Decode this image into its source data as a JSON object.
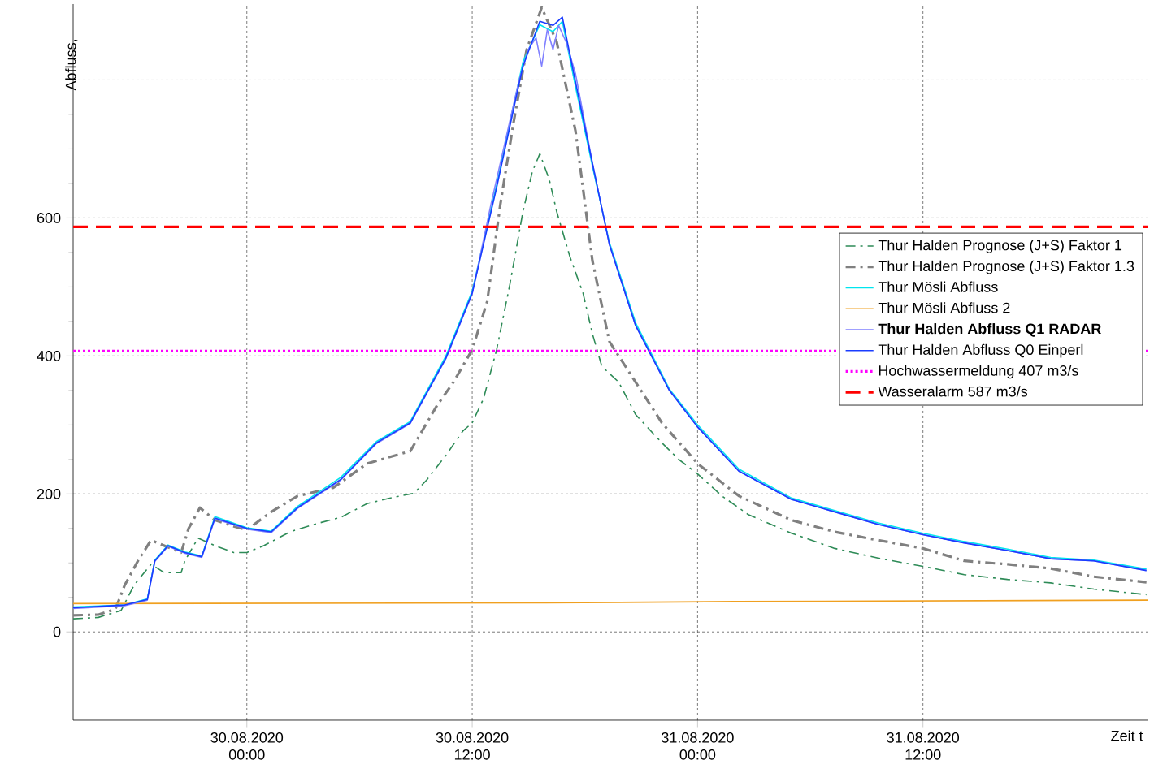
{
  "chart_data": {
    "type": "line",
    "xlabel": "Zeit t",
    "ylabel": "Abfluss,",
    "xlim": [
      "2020-08-29T14:45",
      "2020-09-01T00:00"
    ],
    "ylim": [
      -128,
      910
    ],
    "xticks": [
      {
        "value": "2020-08-30T00:00",
        "label": "30.08.2020 00:00"
      },
      {
        "value": "2020-08-30T12:00",
        "label": "30.08.2020 12:00"
      },
      {
        "value": "2020-08-31T00:00",
        "label": "31.08.2020 00:00"
      },
      {
        "value": "2020-08-31T12:00",
        "label": "31.08.2020 12:00"
      }
    ],
    "yticks": [
      0,
      200,
      400,
      600,
      {
        "value": 800,
        "label": null
      }
    ],
    "grid": true,
    "legend": "right",
    "series": [
      {
        "name": "Thur Halden Prognose  (J+S) Faktor 1",
        "color": "#2e8b57",
        "line_style": "dashed",
        "x": [
          "2020-08-29T14:45",
          "2020-08-29T16:06",
          "2020-08-29T17:18",
          "2020-08-29T18:00",
          "2020-08-29T18:54",
          "2020-08-29T19:36",
          "2020-08-29T20:30",
          "2020-08-29T20:42",
          "2020-08-29T21:24",
          "2020-08-29T22:18",
          "2020-08-29T23:18",
          "2020-08-30T00:00",
          "2020-08-30T00:54",
          "2020-08-30T02:18",
          "2020-08-30T03:36",
          "2020-08-30T05:00",
          "2020-08-30T06:24",
          "2020-08-30T07:48",
          "2020-08-30T08:54",
          "2020-08-30T09:36",
          "2020-08-30T10:36",
          "2020-08-30T11:30",
          "2020-08-30T12:00",
          "2020-08-30T12:36",
          "2020-08-30T13:18",
          "2020-08-30T14:00",
          "2020-08-30T14:42",
          "2020-08-30T15:12",
          "2020-08-30T15:36",
          "2020-08-30T16:06",
          "2020-08-30T16:30",
          "2020-08-30T17:12",
          "2020-08-30T17:54",
          "2020-08-30T18:24",
          "2020-08-30T18:54",
          "2020-08-30T19:48",
          "2020-08-30T20:42",
          "2020-08-30T22:06",
          "2020-08-30T23:00",
          "2020-08-31T00:00",
          "2020-08-31T01:18",
          "2020-08-31T02:42",
          "2020-08-31T05:00",
          "2020-08-31T07:18",
          "2020-08-31T09:36",
          "2020-08-31T12:00",
          "2020-08-31T14:12",
          "2020-08-31T16:30",
          "2020-08-31T18:48",
          "2020-08-31T21:06",
          "2020-08-31T23:54"
        ],
        "values": [
          19,
          21,
          31,
          68,
          98,
          86,
          86,
          103,
          136,
          125,
          115,
          115,
          125,
          145,
          156,
          166,
          186,
          195,
          201,
          221,
          256,
          291,
          303,
          338,
          409,
          503,
          609,
          667,
          693,
          656,
          609,
          544,
          491,
          432,
          385,
          362,
          315,
          274,
          250,
          229,
          197,
          170,
          143,
          121,
          107,
          95,
          83,
          76,
          71,
          62,
          54
        ]
      },
      {
        "name": "Thur Halden Prognose  (J+S) Faktor 1.3",
        "color": "#808080",
        "line_style": "dashed",
        "x": [
          "2020-08-29T14:45",
          "2020-08-29T16:06",
          "2020-08-29T17:00",
          "2020-08-29T17:30",
          "2020-08-29T18:12",
          "2020-08-29T18:54",
          "2020-08-29T19:36",
          "2020-08-29T20:30",
          "2020-08-29T20:54",
          "2020-08-29T21:30",
          "2020-08-29T22:18",
          "2020-08-29T23:18",
          "2020-08-30T00:00",
          "2020-08-30T01:18",
          "2020-08-30T02:42",
          "2020-08-30T04:36",
          "2020-08-30T06:24",
          "2020-08-30T08:42",
          "2020-08-30T10:06",
          "2020-08-30T11:00",
          "2020-08-30T12:00",
          "2020-08-30T12:48",
          "2020-08-30T13:30",
          "2020-08-30T14:12",
          "2020-08-30T14:54",
          "2020-08-30T15:42",
          "2020-08-30T16:30",
          "2020-08-30T17:30",
          "2020-08-30T18:24",
          "2020-08-30T19:18",
          "2020-08-30T20:42",
          "2020-08-30T22:06",
          "2020-08-31T00:00",
          "2020-08-31T02:12",
          "2020-08-31T05:00",
          "2020-08-31T07:18",
          "2020-08-31T09:36",
          "2020-08-31T12:00",
          "2020-08-31T14:12",
          "2020-08-31T16:30",
          "2020-08-31T18:48",
          "2020-08-31T21:06",
          "2020-08-31T23:54"
        ],
        "values": [
          24,
          25,
          33,
          68,
          103,
          133,
          125,
          115,
          150,
          180,
          162,
          153,
          148,
          174,
          197,
          209,
          244,
          262,
          327,
          362,
          409,
          479,
          620,
          738,
          844,
          905,
          855,
          726,
          538,
          421,
          362,
          303,
          244,
          197,
          162,
          145,
          133,
          121,
          103,
          98,
          92,
          80,
          72
        ]
      },
      {
        "name": "Thur Mösli  Abfluss",
        "color": "#00e5ee",
        "line_style": "solid",
        "x": [
          "2020-08-29T14:45",
          "2020-08-29T17:30",
          "2020-08-29T18:42",
          "2020-08-29T19:06",
          "2020-08-29T19:48",
          "2020-08-29T20:42",
          "2020-08-29T21:36",
          "2020-08-29T22:18",
          "2020-08-30T00:00",
          "2020-08-30T01:18",
          "2020-08-30T02:42",
          "2020-08-30T05:00",
          "2020-08-30T06:54",
          "2020-08-30T08:42",
          "2020-08-30T10:36",
          "2020-08-30T12:00",
          "2020-08-30T13:18",
          "2020-08-30T14:42",
          "2020-08-30T15:36",
          "2020-08-30T16:18",
          "2020-08-30T16:48",
          "2020-08-30T17:30",
          "2020-08-30T18:24",
          "2020-08-30T19:18",
          "2020-08-30T20:42",
          "2020-08-30T22:30",
          "2020-08-31T00:00",
          "2020-08-31T02:12",
          "2020-08-31T05:00",
          "2020-08-31T07:18",
          "2020-08-31T09:36",
          "2020-08-31T12:00",
          "2020-08-31T14:12",
          "2020-08-31T16:30",
          "2020-08-31T18:48",
          "2020-08-31T21:06",
          "2020-08-31T23:54"
        ],
        "values": [
          36,
          39,
          48,
          104,
          126,
          116,
          110,
          167,
          151,
          146,
          182,
          224,
          276,
          305,
          400,
          494,
          648,
          826,
          880,
          870,
          885,
          790,
          675,
          565,
          448,
          352,
          300,
          236,
          194,
          176,
          158,
          143,
          131,
          120,
          108,
          104,
          91
        ]
      },
      {
        "name": "Thur Mösli  Abfluss 2",
        "color": "#f0a020",
        "line_style": "solid",
        "x": [
          "2020-08-29T14:45",
          "2020-08-30T16:00",
          "2020-08-31T02:00",
          "2020-09-01T00:00"
        ],
        "values": [
          41,
          42,
          44,
          46
        ]
      },
      {
        "name": "**Thur Halden Abfluss Q1 RADAR**",
        "color": "#8080ff",
        "line_style": "solid",
        "x": [
          "2020-08-29T14:45",
          "2020-08-29T17:30",
          "2020-08-29T18:42",
          "2020-08-29T19:06",
          "2020-08-29T19:48",
          "2020-08-29T20:42",
          "2020-08-29T21:36",
          "2020-08-29T22:18",
          "2020-08-30T00:00",
          "2020-08-30T01:18",
          "2020-08-30T02:42",
          "2020-08-30T05:00",
          "2020-08-30T06:54",
          "2020-08-30T08:42",
          "2020-08-30T10:36",
          "2020-08-30T12:00",
          "2020-08-30T13:00",
          "2020-08-30T13:30",
          "2020-08-30T14:00",
          "2020-08-30T14:30",
          "2020-08-30T15:00",
          "2020-08-30T15:24",
          "2020-08-30T15:42",
          "2020-08-30T16:00",
          "2020-08-30T16:18",
          "2020-08-30T16:36",
          "2020-08-30T17:00",
          "2020-08-30T17:30",
          "2020-08-30T18:24",
          "2020-08-30T19:18",
          "2020-08-30T20:42",
          "2020-08-30T22:30",
          "2020-08-31T00:00",
          "2020-08-31T02:12",
          "2020-08-31T05:00",
          "2020-08-31T07:18",
          "2020-08-31T09:36",
          "2020-08-31T12:00",
          "2020-08-31T14:12",
          "2020-08-31T16:30",
          "2020-08-31T18:48",
          "2020-08-31T21:06",
          "2020-08-31T23:54"
        ],
        "values": [
          34,
          38,
          46,
          102,
          124,
          114,
          108,
          164,
          149,
          144,
          179,
          220,
          273,
          302,
          396,
          490,
          620,
          680,
          740,
          800,
          845,
          861,
          820,
          873,
          844,
          879,
          855,
          809,
          680,
          562,
          444,
          350,
          297,
          233,
          192,
          174,
          156,
          141,
          129,
          118,
          106,
          103,
          89
        ]
      },
      {
        "name": "Thur Halden Abfluss Q0 Einperl",
        "color": "#1a3cff",
        "line_style": "solid",
        "x": [
          "2020-08-29T14:45",
          "2020-08-29T17:30",
          "2020-08-29T18:42",
          "2020-08-29T19:06",
          "2020-08-29T19:48",
          "2020-08-29T20:42",
          "2020-08-29T21:36",
          "2020-08-29T22:18",
          "2020-08-30T00:00",
          "2020-08-30T01:18",
          "2020-08-30T02:42",
          "2020-08-30T05:00",
          "2020-08-30T06:54",
          "2020-08-30T08:42",
          "2020-08-30T10:36",
          "2020-08-30T12:00",
          "2020-08-30T13:18",
          "2020-08-30T14:42",
          "2020-08-30T15:36",
          "2020-08-30T16:18",
          "2020-08-30T16:48",
          "2020-08-30T17:30",
          "2020-08-30T18:24",
          "2020-08-30T19:18",
          "2020-08-30T20:42",
          "2020-08-30T22:30",
          "2020-08-31T00:00",
          "2020-08-31T02:12",
          "2020-08-31T05:00",
          "2020-08-31T07:18",
          "2020-08-31T09:36",
          "2020-08-31T12:00",
          "2020-08-31T14:12",
          "2020-08-31T16:30",
          "2020-08-31T18:48",
          "2020-08-31T21:06",
          "2020-08-31T23:54"
        ],
        "values": [
          35,
          39,
          47,
          103,
          125,
          115,
          109,
          165,
          150,
          145,
          180,
          221,
          274,
          303,
          397,
          491,
          644,
          820,
          885,
          879,
          891,
          797,
          679,
          562,
          444,
          350,
          297,
          233,
          192,
          174,
          156,
          141,
          129,
          118,
          106,
          103,
          89
        ]
      }
    ],
    "ref_lines": [
      {
        "axis": "y",
        "value": 407,
        "label": "Hochwassermeldung 407 m3/s",
        "color": "#ff00ff",
        "line_style": "dotted"
      },
      {
        "axis": "y",
        "value": 587,
        "label": "Wasseralarm 587 m3/s",
        "color": "#ff0000",
        "line_style": "dashed"
      }
    ]
  }
}
